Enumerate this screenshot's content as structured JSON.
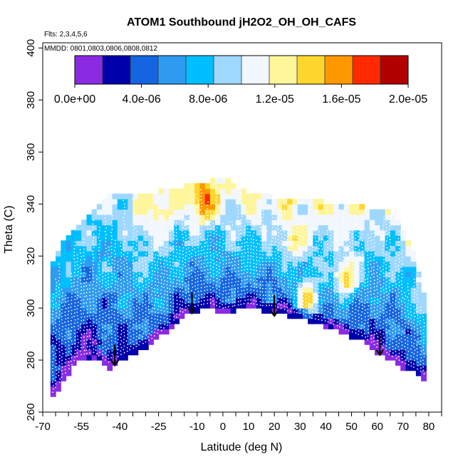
{
  "chart_data": {
    "type": "heatmap",
    "title": "ATOM1 Southbound jH2O2_OH_OH_CAFS",
    "flights_note": "Flts: 2,3,4,5,6",
    "dates_note": "MMDD: 0801,0803,0806,0808,0812",
    "xlabel": "Latitude (deg N)",
    "ylabel": "Theta (C)",
    "xlim": [
      -70,
      85
    ],
    "ylim": [
      260,
      402
    ],
    "x_tick_labels": [
      -70,
      -55,
      -40,
      -25,
      -10,
      0,
      10,
      20,
      30,
      40,
      50,
      60,
      70,
      80
    ],
    "y_tick_labels": [
      260,
      280,
      300,
      320,
      340,
      360,
      380,
      400
    ],
    "colorbar": {
      "range": [
        0,
        2e-05
      ],
      "tick_labels": [
        "0.0e+00",
        "4.0e-06",
        "8.0e-06",
        "1.2e-05",
        "1.6e-05",
        "2.0e-05"
      ],
      "colors": [
        "#8a2be2",
        "#0000aa",
        "#1565e0",
        "#2e9bf0",
        "#00bfff",
        "#9fd8ff",
        "#f2f7ff",
        "#fff59a",
        "#ffd62e",
        "#ff9800",
        "#ff2a00",
        "#b20000"
      ]
    },
    "surface_boundary": {
      "lat": [
        -67,
        -62,
        -56,
        -50,
        -44,
        -40,
        -34,
        -28,
        -22,
        -15,
        -10,
        -5,
        0,
        5,
        10,
        15,
        20,
        25,
        30,
        35,
        40,
        45,
        50,
        55,
        60,
        65,
        70,
        75,
        79
      ],
      "theta": [
        264,
        272,
        280,
        281,
        277,
        280,
        283,
        286,
        291,
        297,
        299,
        300,
        298,
        299,
        300,
        299,
        299,
        297,
        296,
        294,
        293,
        291,
        289,
        287,
        283,
        280,
        277,
        275,
        272
      ]
    },
    "top_boundary": {
      "lat": [
        -67,
        -64,
        -60,
        -55,
        -50,
        -45,
        -40,
        -35,
        -30,
        -25,
        -20,
        -15,
        -10,
        -5,
        0,
        5,
        10,
        15,
        20,
        25,
        30,
        35,
        40,
        45,
        50,
        55,
        60,
        65,
        70,
        75,
        79
      ],
      "theta": [
        316,
        322,
        327,
        333,
        338,
        342,
        343,
        343,
        344,
        344,
        345,
        346,
        347,
        348,
        350,
        346,
        343,
        343,
        342,
        341,
        341,
        341,
        340,
        340,
        339,
        338,
        337,
        336,
        330,
        318,
        300
      ]
    },
    "highlight_regions": [
      {
        "lat": -7,
        "theta": 341,
        "value": 1.7e-05
      },
      {
        "lat": 33,
        "theta": 304,
        "value": 1.5e-05
      },
      {
        "lat": 48,
        "theta": 312,
        "value": 1.45e-05
      },
      {
        "lat": 28,
        "theta": 326,
        "value": 1.3e-05
      },
      {
        "lat": -25,
        "theta": 338,
        "value": 1.2e-05
      }
    ],
    "tropopause_arrows": [
      {
        "lat": -42,
        "theta": 278
      },
      {
        "lat": -12,
        "theta": 298
      },
      {
        "lat": 20,
        "theta": 297
      },
      {
        "lat": 61,
        "theta": 282
      }
    ]
  }
}
